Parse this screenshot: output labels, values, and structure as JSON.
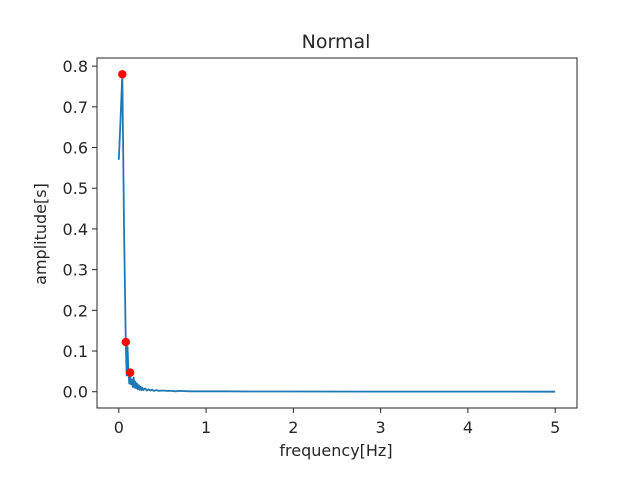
{
  "chart_data": {
    "type": "line",
    "title": "Normal",
    "xlabel": "frequency[Hz]",
    "ylabel": "amplitude[s]",
    "xlim": [
      -0.25,
      5.25
    ],
    "ylim": [
      -0.04,
      0.82
    ],
    "xticks": [
      0,
      1,
      2,
      3,
      4,
      5
    ],
    "xtick_labels": [
      "0",
      "1",
      "2",
      "3",
      "4",
      "5"
    ],
    "yticks": [
      0.0,
      0.1,
      0.2,
      0.3,
      0.4,
      0.5,
      0.6,
      0.7,
      0.8
    ],
    "ytick_labels": [
      "0.0",
      "0.1",
      "0.2",
      "0.3",
      "0.4",
      "0.5",
      "0.6",
      "0.7",
      "0.8"
    ],
    "grid": false,
    "line_color": "#1f77b4",
    "marker_color": "#ff0000",
    "series": [
      {
        "x": [
          0.0,
          0.02,
          0.04,
          0.06,
          0.08,
          0.09,
          0.1,
          0.11,
          0.12,
          0.13,
          0.14,
          0.15,
          0.16,
          0.17,
          0.18,
          0.19,
          0.2,
          0.21,
          0.22,
          0.23,
          0.24,
          0.25,
          0.26,
          0.27,
          0.28,
          0.3,
          0.32,
          0.34,
          0.36,
          0.38,
          0.4,
          0.43,
          0.46,
          0.5,
          0.55,
          0.6,
          0.65,
          0.7,
          0.8,
          0.9,
          1.0,
          1.2,
          1.5,
          2.0,
          3.0,
          4.0,
          5.0
        ],
        "y": [
          0.57,
          0.67,
          0.78,
          0.4,
          0.12,
          0.04,
          0.11,
          0.05,
          0.02,
          0.047,
          0.018,
          0.03,
          0.012,
          0.035,
          0.01,
          0.025,
          0.008,
          0.02,
          0.006,
          0.016,
          0.005,
          0.012,
          0.004,
          0.01,
          0.004,
          0.008,
          0.003,
          0.006,
          0.003,
          0.005,
          0.002,
          0.004,
          0.002,
          0.003,
          0.002,
          0.002,
          0.001,
          0.002,
          0.001,
          0.001,
          0.001,
          0.001,
          0.0005,
          0.0005,
          0.0003,
          0.0002,
          0.0001
        ]
      }
    ],
    "peaks": [
      {
        "x": 0.04,
        "y": 0.78
      },
      {
        "x": 0.08,
        "y": 0.122
      },
      {
        "x": 0.13,
        "y": 0.047
      }
    ]
  }
}
